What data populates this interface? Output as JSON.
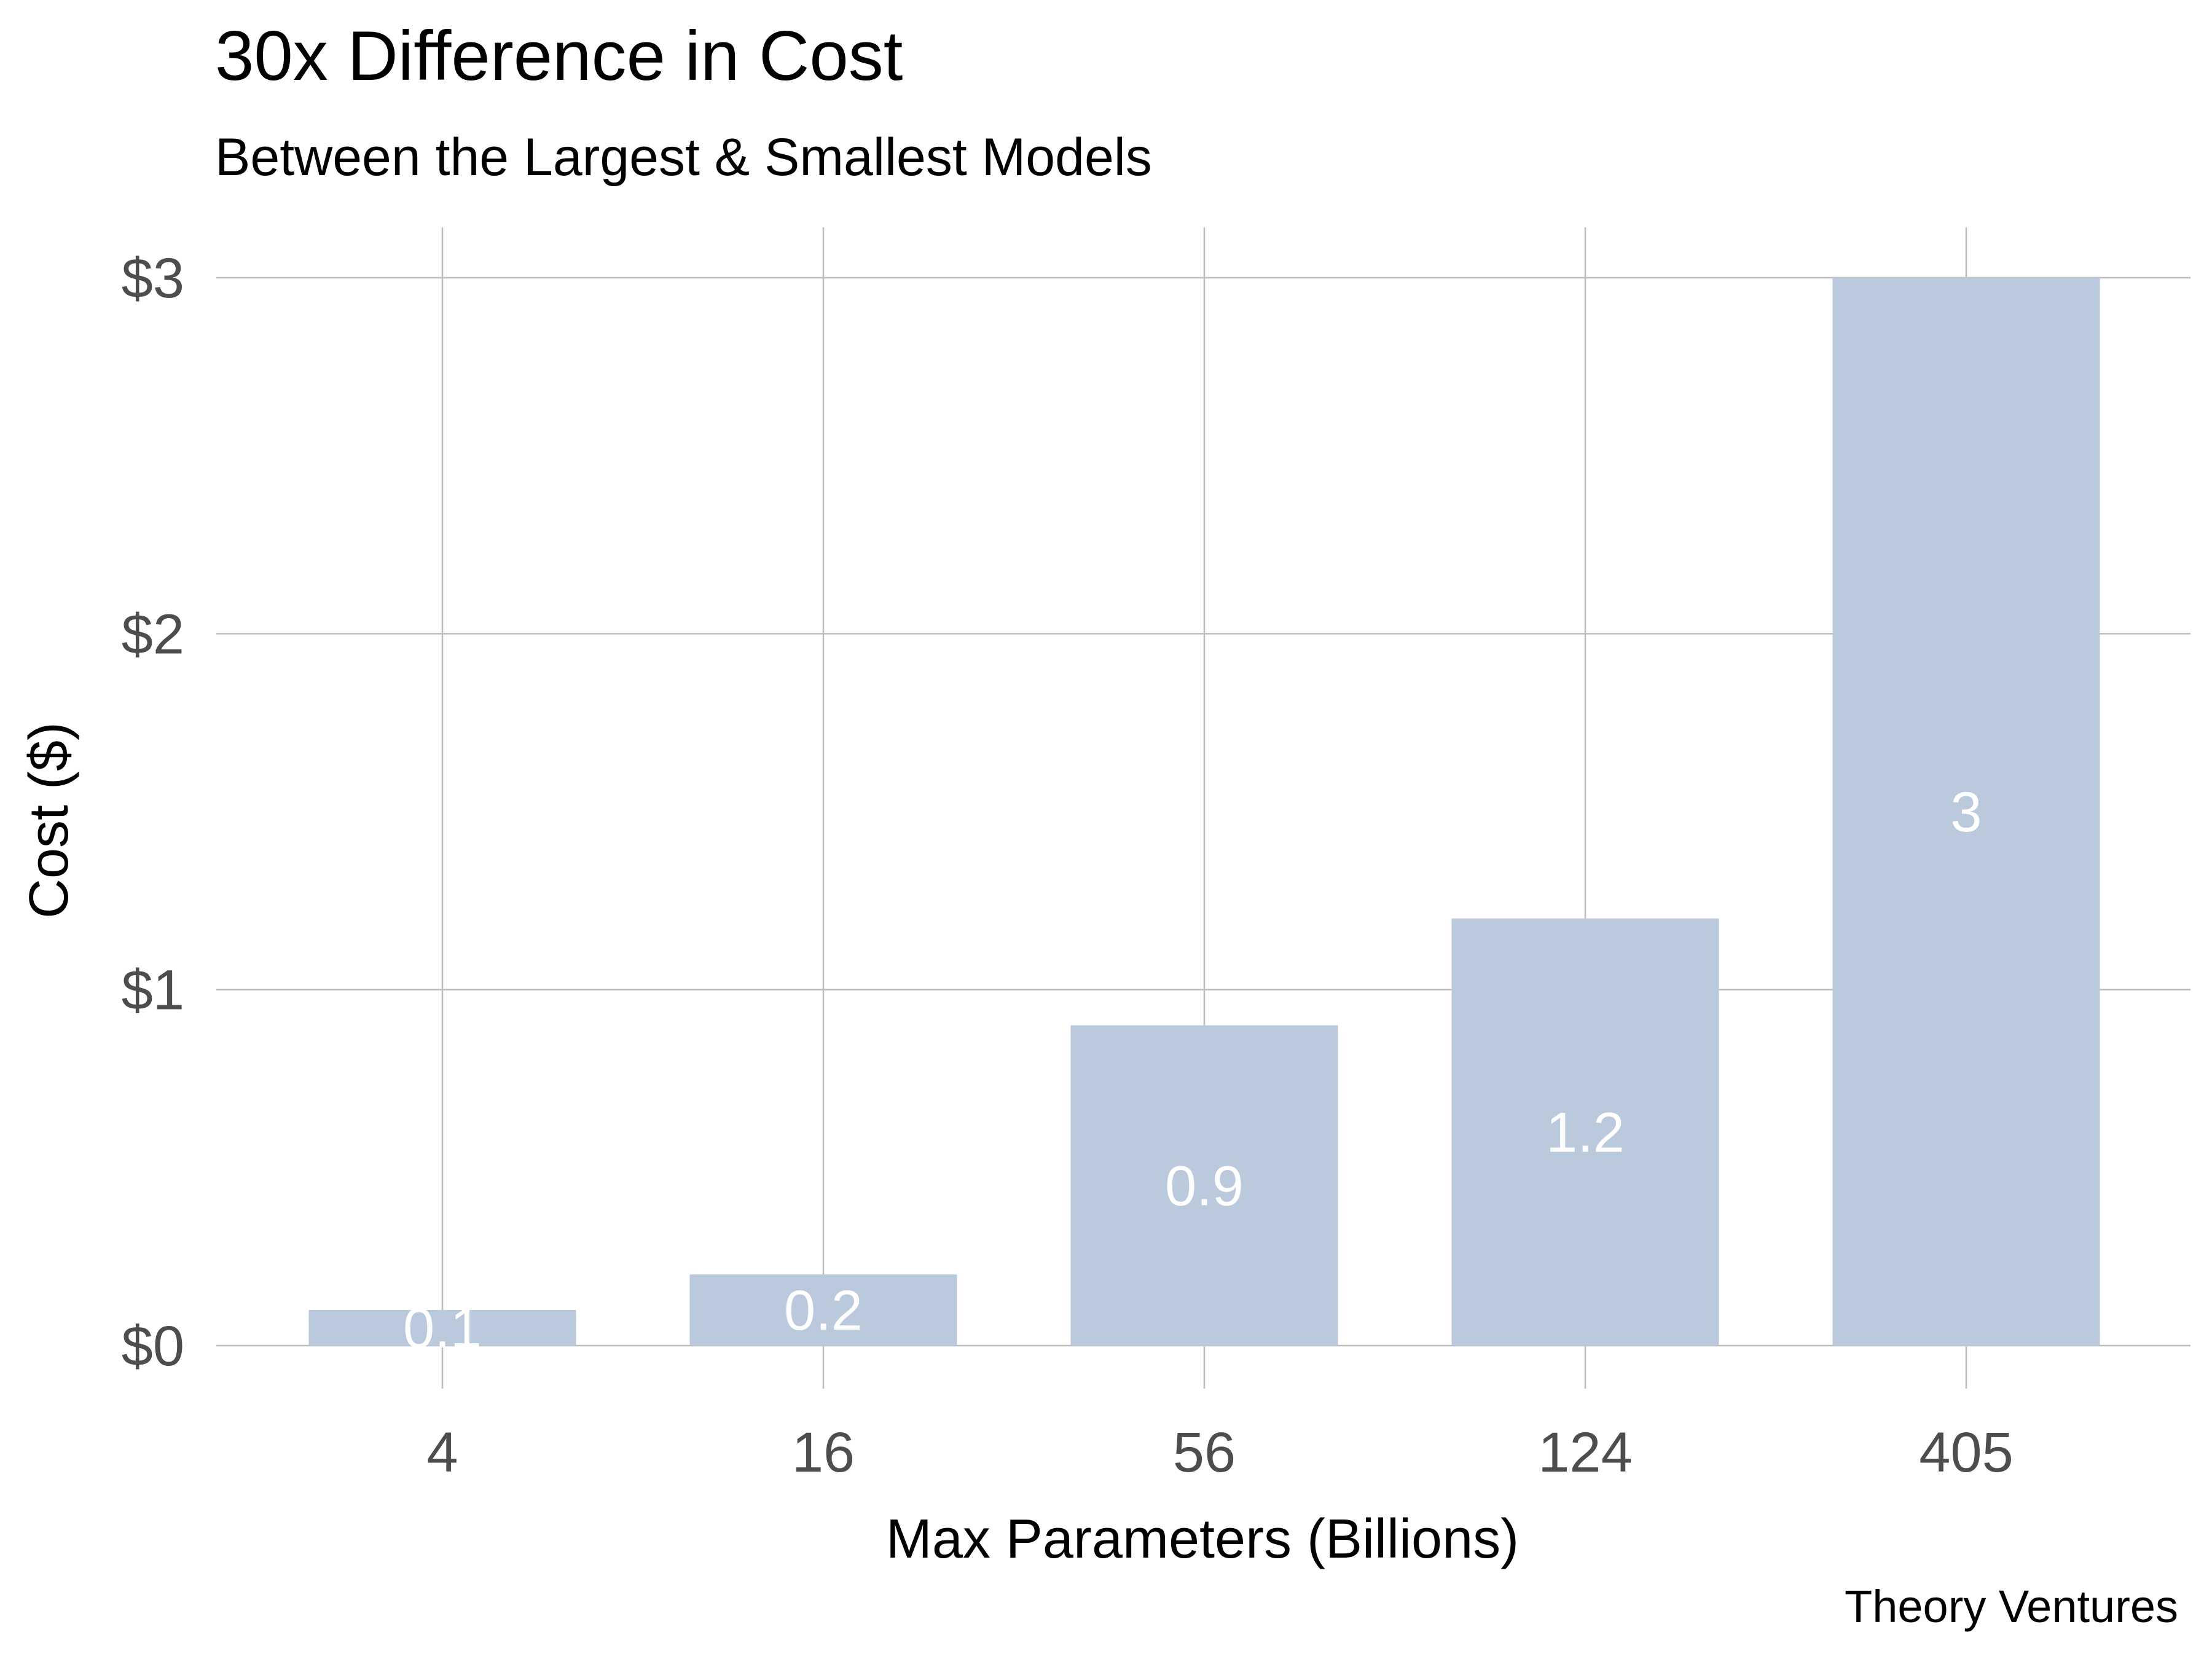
{
  "chart_data": {
    "type": "bar",
    "title": "30x Difference in Cost",
    "subtitle": "Between the Largest & Smallest Models",
    "xlabel": "Max Parameters (Billions)",
    "ylabel": "Cost ($)",
    "caption": "Theory Ventures",
    "categories": [
      "4",
      "16",
      "56",
      "124",
      "405"
    ],
    "values": [
      0.1,
      0.2,
      0.9,
      1.2,
      3
    ],
    "data_labels": [
      "0.1",
      "0.2",
      "0.9",
      "1.2",
      "3"
    ],
    "y_ticks": [
      0,
      1,
      2,
      3
    ],
    "y_tick_labels": [
      "$0",
      "$1",
      "$2",
      "$3"
    ],
    "ylim": [
      0,
      3
    ],
    "grid": true,
    "legend": "none",
    "colors": {
      "bar": "#bac9dc",
      "bar_label": "#ffffff",
      "grid": "#bdbdbd",
      "tick_text": "#4d4d4d"
    }
  }
}
